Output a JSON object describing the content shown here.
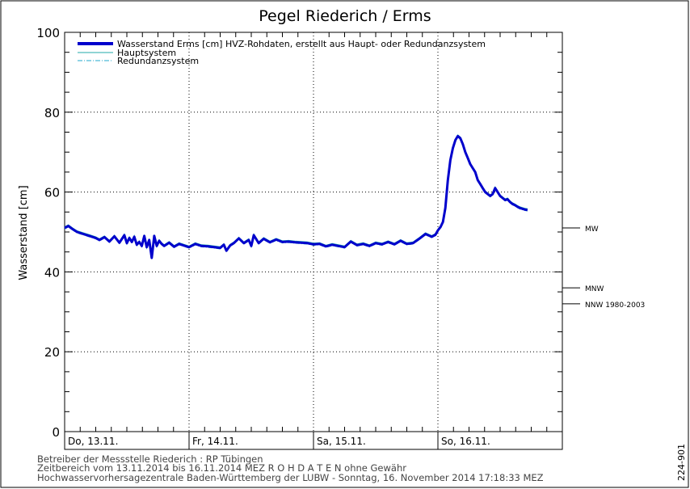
{
  "chart_data": {
    "type": "line",
    "title": "Pegel Riederich / Erms",
    "ylabel": "Wasserstand [cm]",
    "xlabel": "",
    "ylim": [
      0,
      100
    ],
    "xlim": [
      0,
      4
    ],
    "y_ticks": [
      0,
      20,
      40,
      60,
      80,
      100
    ],
    "grid": true,
    "legend_position": "top-left",
    "day_labels": [
      {
        "x": 0,
        "label": "Do, 13.11."
      },
      {
        "x": 1,
        "label": "Fr, 14.11."
      },
      {
        "x": 2,
        "label": "Sa, 15.11."
      },
      {
        "x": 3,
        "label": "So, 16.11."
      }
    ],
    "reference_lines": [
      {
        "label": "MW",
        "value": 51
      },
      {
        "label": "MNW",
        "value": 36
      },
      {
        "label": "NNW 1980-2003",
        "value": 32
      }
    ],
    "series": [
      {
        "name": "Wasserstand Erms [cm] HVZ-Rohdaten, erstellt aus Haupt- oder Redundanzsystem",
        "color": "#0000cc",
        "style": "thick",
        "x": [
          0,
          0.03,
          0.06,
          0.1,
          0.15,
          0.2,
          0.25,
          0.28,
          0.32,
          0.36,
          0.4,
          0.44,
          0.48,
          0.5,
          0.52,
          0.54,
          0.56,
          0.58,
          0.6,
          0.62,
          0.64,
          0.66,
          0.68,
          0.7,
          0.72,
          0.74,
          0.76,
          0.78,
          0.8,
          0.84,
          0.88,
          0.92,
          0.96,
          1.0,
          1.05,
          1.1,
          1.15,
          1.2,
          1.25,
          1.28,
          1.3,
          1.33,
          1.36,
          1.4,
          1.44,
          1.48,
          1.5,
          1.52,
          1.56,
          1.6,
          1.65,
          1.7,
          1.75,
          1.8,
          1.85,
          1.9,
          1.95,
          2.0,
          2.05,
          2.1,
          2.15,
          2.2,
          2.25,
          2.3,
          2.35,
          2.4,
          2.45,
          2.5,
          2.55,
          2.6,
          2.65,
          2.7,
          2.75,
          2.8,
          2.85,
          2.9,
          2.95,
          2.98,
          3.0,
          3.02,
          3.04,
          3.06,
          3.08,
          3.1,
          3.12,
          3.14,
          3.16,
          3.18,
          3.2,
          3.22,
          3.24,
          3.26,
          3.28,
          3.3,
          3.32,
          3.34,
          3.36,
          3.38,
          3.4,
          3.42,
          3.44,
          3.46,
          3.48,
          3.5,
          3.52,
          3.54,
          3.56,
          3.58,
          3.6,
          3.62,
          3.64,
          3.66,
          3.68,
          3.7,
          3.72
        ],
        "values": [
          51,
          51.5,
          50.8,
          50,
          49.5,
          49,
          48.5,
          48,
          48.7,
          47.6,
          48.9,
          47.3,
          49.2,
          47.2,
          48.5,
          47.5,
          48.8,
          46.8,
          47.5,
          46.5,
          49,
          46.2,
          48,
          43.5,
          49,
          46.5,
          47.8,
          47,
          46.5,
          47.3,
          46.3,
          47,
          46.6,
          46.2,
          47,
          46.5,
          46.4,
          46.2,
          46,
          46.8,
          45.3,
          46.6,
          47.2,
          48.4,
          47.2,
          48,
          46.5,
          49.2,
          47.2,
          48.3,
          47.4,
          48.1,
          47.5,
          47.6,
          47.4,
          47.3,
          47.2,
          46.9,
          47.0,
          46.4,
          46.8,
          46.5,
          46.2,
          47.6,
          46.7,
          47.0,
          46.5,
          47.2,
          46.9,
          47.5,
          46.9,
          47.8,
          47.0,
          47.2,
          48.3,
          49.5,
          48.8,
          49.3,
          50.4,
          51.2,
          52.5,
          56,
          63,
          68,
          71,
          73,
          74,
          73.5,
          72,
          70,
          68.5,
          67,
          66,
          65,
          63,
          62,
          61,
          60,
          59.5,
          59,
          59.5,
          61,
          60,
          59,
          58.5,
          58,
          58.2,
          57.5,
          57,
          56.7,
          56.3,
          56,
          55.8,
          55.6,
          55.5
        ]
      },
      {
        "name": "Hauptsystem",
        "color": "#22aaaa",
        "style": "thin"
      },
      {
        "name": "Redundanzsystem",
        "color": "#22aacc",
        "style": "dashdot"
      }
    ]
  },
  "footer": {
    "line1": "Betreiber der Messstelle Riederich : RP Tübingen",
    "line2": "Zeitbereich vom 13.11.2014 bis 16.11.2014    MEZ    R O H D A T E N ohne Gewähr",
    "line3": "Hochwasservorhersagezentrale Baden-Württemberg der LUBW - Sonntag, 16. November 2014 17:18:33 MEZ"
  },
  "side_code": "224-901"
}
